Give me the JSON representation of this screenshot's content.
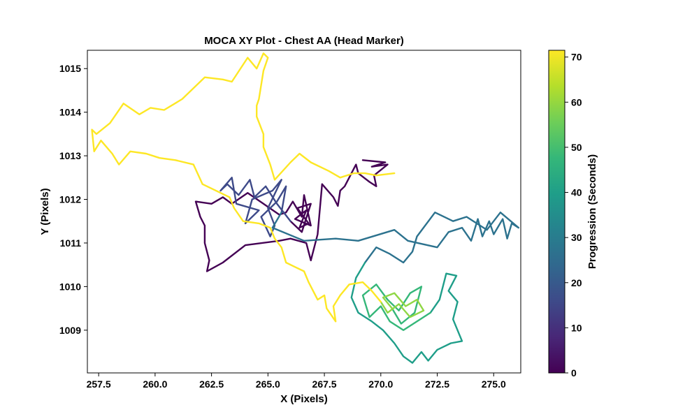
{
  "chart_data": {
    "type": "line",
    "title": "MOCA XY Plot - Chest AA (Head Marker)",
    "xlabel": "X (Pixels)",
    "ylabel": "Y (Pixels)",
    "xlim": [
      257.0,
      276.2
    ],
    "ylim": [
      1008.02,
      1015.42
    ],
    "xticks": [
      "257.5",
      "260.0",
      "262.5",
      "265.0",
      "267.5",
      "270.0",
      "272.5",
      "275.0"
    ],
    "yticks": [
      "1009",
      "1010",
      "1011",
      "1012",
      "1013",
      "1014",
      "1015"
    ],
    "grid": false,
    "colorbar": {
      "label": "Progression (Seconds)",
      "range": [
        0,
        71.5
      ],
      "ticks": [
        "0",
        "10",
        "20",
        "30",
        "40",
        "50",
        "60",
        "70"
      ],
      "colormap": [
        "#440154",
        "#482777",
        "#3e4a89",
        "#31688e",
        "#26828e",
        "#1f9e89",
        "#35b779",
        "#6ece58",
        "#b5de2b",
        "#fde725"
      ]
    },
    "series": [
      {
        "t_range": [
          0,
          8
        ],
        "color": "#440154",
        "points": [
          [
            269.2,
            1012.9
          ],
          [
            270.2,
            1012.85
          ],
          [
            269.6,
            1012.75
          ],
          [
            270.3,
            1012.8
          ],
          [
            269.7,
            1012.55
          ],
          [
            269.8,
            1012.3
          ],
          [
            269.5,
            1012.4
          ],
          [
            269.0,
            1012.6
          ],
          [
            268.9,
            1012.8
          ],
          [
            268.6,
            1012.5
          ],
          [
            268.4,
            1012.3
          ],
          [
            268.2,
            1012.2
          ],
          [
            268.1,
            1011.85
          ],
          [
            267.9,
            1012.05
          ],
          [
            267.4,
            1012.35
          ],
          [
            267.2,
            1011.2
          ],
          [
            266.9,
            1010.6
          ],
          [
            266.7,
            1011.0
          ],
          [
            266.0,
            1011.1
          ],
          [
            265.5,
            1011.05
          ],
          [
            264.0,
            1010.95
          ],
          [
            263.0,
            1010.55
          ],
          [
            262.3,
            1010.35
          ],
          [
            262.4,
            1010.6
          ],
          [
            262.2,
            1011.0
          ],
          [
            262.2,
            1011.4
          ],
          [
            262.0,
            1011.6
          ],
          [
            261.8,
            1011.95
          ],
          [
            262.5,
            1011.9
          ],
          [
            263.0,
            1012.05
          ],
          [
            263.4,
            1011.9
          ],
          [
            264.1,
            1012.15
          ],
          [
            264.8,
            1011.9
          ],
          [
            265.5,
            1011.65
          ],
          [
            265.8,
            1011.7
          ],
          [
            266.1,
            1011.95
          ],
          [
            266.5,
            1011.6
          ],
          [
            266.6,
            1012.1
          ],
          [
            266.9,
            1011.4
          ],
          [
            266.2,
            1011.55
          ],
          [
            266.7,
            1011.75
          ],
          [
            266.4,
            1011.35
          ],
          [
            266.8,
            1011.45
          ],
          [
            266.3,
            1011.8
          ],
          [
            266.9,
            1011.9
          ],
          [
            266.5,
            1011.25
          ],
          [
            266.0,
            1011.5
          ]
        ]
      },
      {
        "t_range": [
          8,
          20
        ],
        "color": "#3e4a89",
        "points": [
          [
            266.0,
            1011.5
          ],
          [
            265.4,
            1011.9
          ],
          [
            264.9,
            1012.3
          ],
          [
            264.4,
            1012.05
          ],
          [
            264.2,
            1012.45
          ],
          [
            263.7,
            1012.1
          ],
          [
            263.2,
            1012.35
          ],
          [
            262.9,
            1012.2
          ],
          [
            263.4,
            1012.5
          ],
          [
            263.6,
            1011.9
          ],
          [
            264.6,
            1011.75
          ],
          [
            264.0,
            1011.45
          ],
          [
            264.3,
            1012.0
          ],
          [
            265.2,
            1012.2
          ],
          [
            265.6,
            1012.45
          ],
          [
            265.0,
            1011.8
          ],
          [
            265.3,
            1011.4
          ],
          [
            265.1,
            1011.15
          ],
          [
            264.7,
            1011.6
          ],
          [
            265.4,
            1011.95
          ],
          [
            265.8,
            1012.3
          ],
          [
            265.6,
            1011.7
          ]
        ]
      },
      {
        "t_range": [
          20,
          33
        ],
        "color": "#2c728e",
        "points": [
          [
            265.6,
            1011.7
          ],
          [
            265.2,
            1011.35
          ],
          [
            266.6,
            1011.05
          ],
          [
            268.0,
            1011.1
          ],
          [
            269.0,
            1011.05
          ],
          [
            270.6,
            1011.3
          ],
          [
            271.2,
            1011.05
          ],
          [
            272.5,
            1010.9
          ],
          [
            273.0,
            1011.25
          ],
          [
            273.6,
            1011.35
          ],
          [
            274.0,
            1011.05
          ],
          [
            274.3,
            1011.55
          ],
          [
            274.5,
            1011.15
          ],
          [
            274.8,
            1011.5
          ],
          [
            275.0,
            1011.2
          ],
          [
            275.4,
            1011.55
          ],
          [
            275.6,
            1011.1
          ],
          [
            275.8,
            1011.45
          ],
          [
            276.1,
            1011.35
          ],
          [
            275.3,
            1011.7
          ],
          [
            274.7,
            1011.3
          ],
          [
            273.8,
            1011.6
          ],
          [
            273.2,
            1011.5
          ],
          [
            272.4,
            1011.7
          ],
          [
            271.6,
            1011.15
          ],
          [
            271.4,
            1010.8
          ],
          [
            271.0,
            1010.55
          ],
          [
            270.4,
            1010.75
          ],
          [
            269.8,
            1010.9
          ],
          [
            269.3,
            1010.55
          ]
        ]
      },
      {
        "t_range": [
          33,
          47
        ],
        "color": "#1f9e89",
        "points": [
          [
            269.3,
            1010.55
          ],
          [
            268.9,
            1010.2
          ],
          [
            268.7,
            1009.75
          ],
          [
            269.0,
            1009.4
          ],
          [
            269.6,
            1009.2
          ],
          [
            270.1,
            1009.0
          ],
          [
            270.6,
            1008.7
          ],
          [
            271.0,
            1008.4
          ],
          [
            271.4,
            1008.25
          ],
          [
            271.8,
            1008.5
          ],
          [
            272.1,
            1008.3
          ],
          [
            272.5,
            1008.55
          ],
          [
            273.1,
            1008.7
          ],
          [
            273.6,
            1008.75
          ],
          [
            273.2,
            1009.25
          ],
          [
            273.4,
            1009.65
          ],
          [
            273.0,
            1009.9
          ],
          [
            273.35,
            1010.25
          ],
          [
            272.9,
            1010.3
          ],
          [
            272.6,
            1009.7
          ],
          [
            272.2,
            1009.4
          ]
        ]
      },
      {
        "t_range": [
          47,
          60
        ],
        "color": "#35b779",
        "points": [
          [
            272.2,
            1009.4
          ],
          [
            271.6,
            1009.2
          ],
          [
            271.0,
            1009.0
          ],
          [
            270.4,
            1009.2
          ],
          [
            270.0,
            1009.55
          ],
          [
            269.5,
            1009.3
          ],
          [
            269.2,
            1009.8
          ],
          [
            269.8,
            1010.05
          ],
          [
            270.3,
            1009.7
          ],
          [
            270.8,
            1009.45
          ],
          [
            271.3,
            1009.85
          ],
          [
            271.8,
            1010.0
          ],
          [
            271.5,
            1009.4
          ],
          [
            270.9,
            1009.15
          ],
          [
            270.5,
            1009.5
          ]
        ]
      },
      {
        "t_range": [
          60,
          66
        ],
        "color": "#8fd744",
        "points": [
          [
            270.5,
            1009.5
          ],
          [
            270.1,
            1009.75
          ],
          [
            270.6,
            1009.85
          ],
          [
            271.1,
            1009.55
          ],
          [
            271.6,
            1009.7
          ],
          [
            271.9,
            1009.45
          ],
          [
            271.3,
            1009.3
          ],
          [
            270.8,
            1009.6
          ],
          [
            270.3,
            1009.4
          ],
          [
            270.0,
            1009.65
          ]
        ]
      },
      {
        "t_range": [
          66,
          71.5
        ],
        "color": "#fde725",
        "points": [
          [
            270.0,
            1009.65
          ],
          [
            269.6,
            1009.9
          ],
          [
            269.2,
            1010.1
          ],
          [
            268.6,
            1010.05
          ],
          [
            268.2,
            1009.8
          ],
          [
            267.9,
            1009.55
          ],
          [
            268.0,
            1009.2
          ],
          [
            267.6,
            1009.5
          ],
          [
            267.5,
            1009.8
          ],
          [
            267.2,
            1009.7
          ],
          [
            266.8,
            1010.1
          ],
          [
            266.6,
            1010.35
          ],
          [
            266.2,
            1010.45
          ],
          [
            265.8,
            1010.55
          ],
          [
            265.6,
            1010.9
          ],
          [
            265.3,
            1011.1
          ],
          [
            265.1,
            1011.35
          ],
          [
            264.6,
            1011.45
          ],
          [
            263.9,
            1011.5
          ],
          [
            263.5,
            1011.8
          ],
          [
            263.3,
            1012.05
          ],
          [
            262.1,
            1012.35
          ],
          [
            261.7,
            1012.8
          ],
          [
            260.9,
            1012.9
          ],
          [
            260.2,
            1012.95
          ],
          [
            259.6,
            1013.05
          ],
          [
            258.9,
            1013.1
          ],
          [
            258.4,
            1012.8
          ],
          [
            258.1,
            1013.05
          ],
          [
            257.6,
            1013.35
          ],
          [
            257.3,
            1013.1
          ],
          [
            257.2,
            1013.6
          ],
          [
            257.4,
            1013.5
          ],
          [
            258.0,
            1013.75
          ],
          [
            258.6,
            1014.2
          ],
          [
            259.3,
            1013.95
          ],
          [
            259.8,
            1014.1
          ],
          [
            260.4,
            1014.05
          ],
          [
            261.2,
            1014.3
          ],
          [
            262.2,
            1014.8
          ],
          [
            263.0,
            1014.75
          ],
          [
            263.4,
            1014.7
          ],
          [
            264.1,
            1015.25
          ],
          [
            264.5,
            1015.0
          ],
          [
            264.8,
            1015.35
          ],
          [
            265.0,
            1015.25
          ],
          [
            264.8,
            1014.95
          ],
          [
            264.6,
            1014.3
          ],
          [
            264.5,
            1014.15
          ],
          [
            264.5,
            1013.9
          ],
          [
            264.8,
            1013.5
          ],
          [
            264.8,
            1013.2
          ],
          [
            265.1,
            1012.8
          ],
          [
            265.3,
            1012.45
          ],
          [
            266.0,
            1012.85
          ],
          [
            266.4,
            1013.05
          ],
          [
            266.9,
            1012.85
          ],
          [
            267.7,
            1012.65
          ],
          [
            268.2,
            1012.5
          ],
          [
            268.8,
            1012.6
          ],
          [
            269.3,
            1012.6
          ],
          [
            269.8,
            1012.55
          ],
          [
            270.6,
            1012.6
          ]
        ]
      }
    ]
  }
}
